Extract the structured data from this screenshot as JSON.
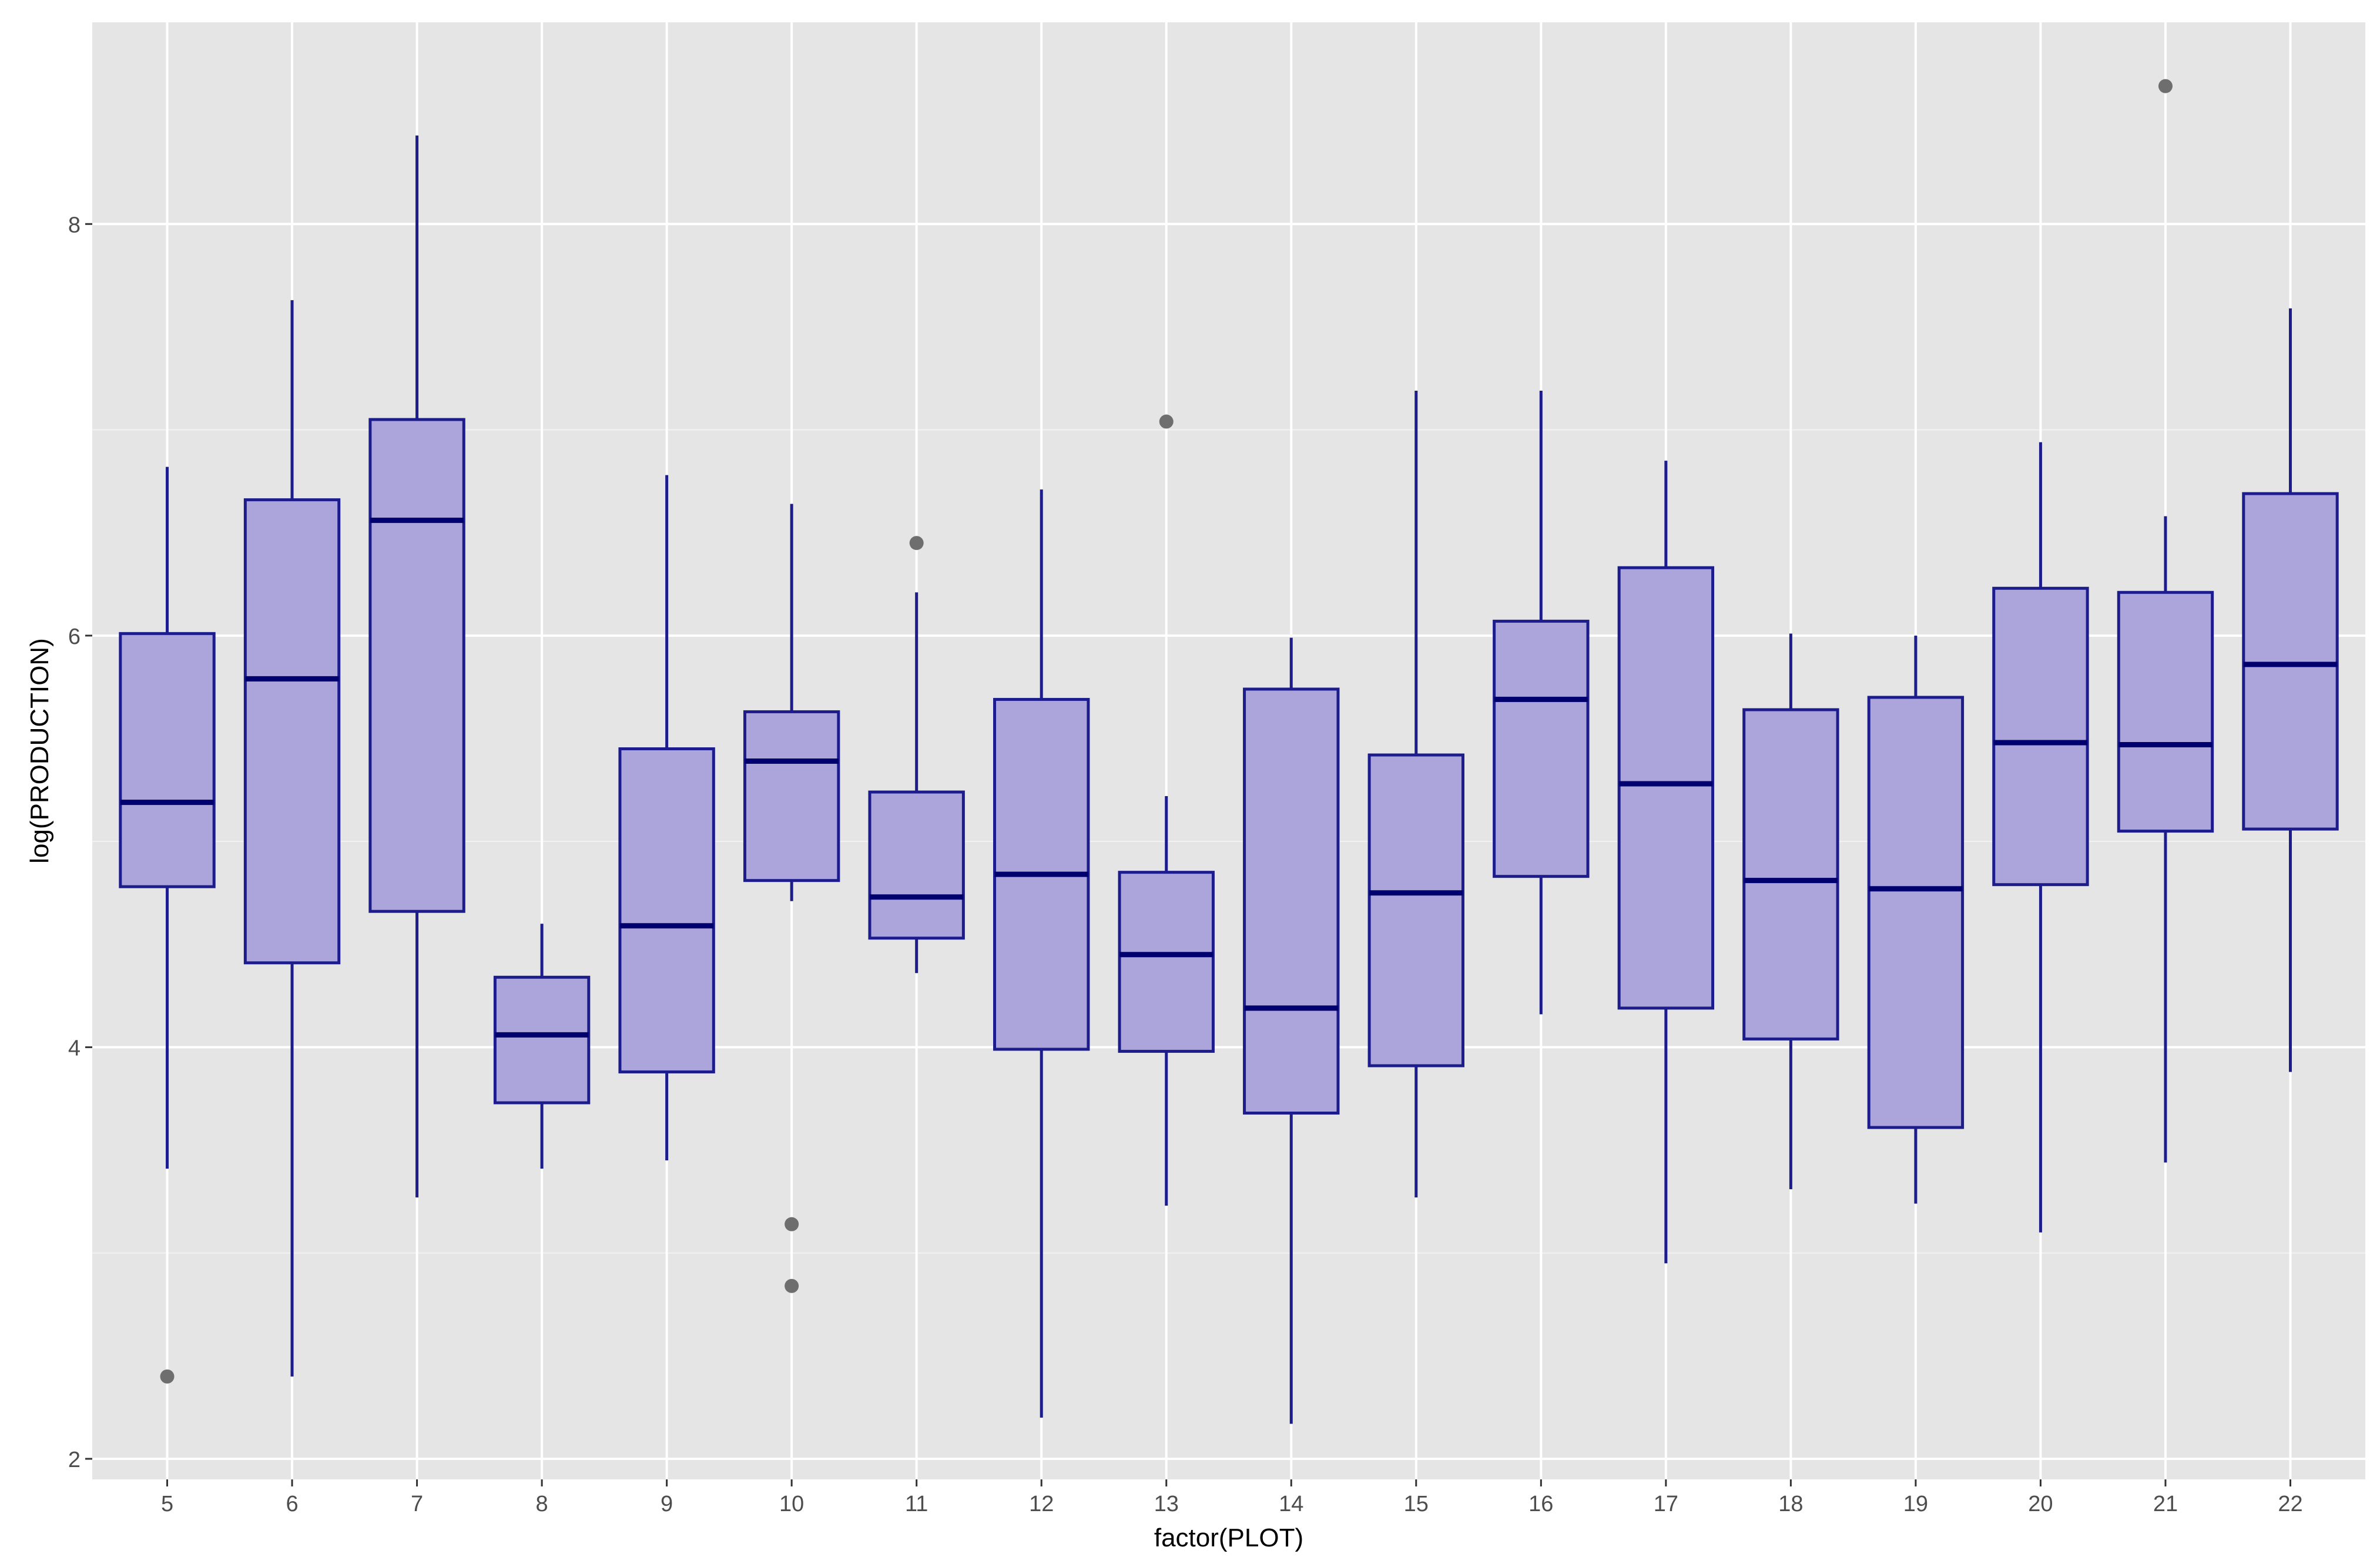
{
  "chart_data": {
    "type": "boxplot",
    "title": "",
    "xlabel": "factor(PLOT)",
    "ylabel": "log(PRODUCTION)",
    "ylim": [
      1.9,
      8.98
    ],
    "y_ticks": [
      "2",
      "4",
      "6",
      "8"
    ],
    "categories": [
      "5",
      "6",
      "7",
      "8",
      "9",
      "10",
      "11",
      "12",
      "13",
      "14",
      "15",
      "16",
      "17",
      "18",
      "19",
      "20",
      "21",
      "22"
    ],
    "boxes": [
      {
        "category": "5",
        "whisker_low": 3.41,
        "q1": 4.78,
        "median": 5.19,
        "q3": 6.01,
        "whisker_high": 6.82,
        "outliers": [
          2.4
        ]
      },
      {
        "category": "6",
        "whisker_low": 2.4,
        "q1": 4.41,
        "median": 5.79,
        "q3": 6.66,
        "whisker_high": 7.63,
        "outliers": []
      },
      {
        "category": "7",
        "whisker_low": 3.27,
        "q1": 4.66,
        "median": 6.56,
        "q3": 7.05,
        "whisker_high": 8.43,
        "outliers": []
      },
      {
        "category": "8",
        "whisker_low": 3.41,
        "q1": 3.73,
        "median": 4.06,
        "q3": 4.34,
        "whisker_high": 4.6,
        "outliers": []
      },
      {
        "category": "9",
        "whisker_low": 3.45,
        "q1": 3.88,
        "median": 4.59,
        "q3": 5.45,
        "whisker_high": 6.78,
        "outliers": []
      },
      {
        "category": "10",
        "whisker_low": 4.71,
        "q1": 4.81,
        "median": 5.39,
        "q3": 5.63,
        "whisker_high": 6.64,
        "outliers": [
          3.14,
          2.84
        ]
      },
      {
        "category": "11",
        "whisker_low": 4.36,
        "q1": 4.53,
        "median": 4.73,
        "q3": 5.24,
        "whisker_high": 6.21,
        "outliers": [
          6.45
        ]
      },
      {
        "category": "12",
        "whisker_low": 2.2,
        "q1": 3.99,
        "median": 4.84,
        "q3": 5.69,
        "whisker_high": 6.71,
        "outliers": []
      },
      {
        "category": "13",
        "whisker_low": 3.23,
        "q1": 3.98,
        "median": 4.45,
        "q3": 4.85,
        "whisker_high": 5.22,
        "outliers": [
          7.04
        ]
      },
      {
        "category": "14",
        "whisker_low": 2.17,
        "q1": 3.68,
        "median": 4.19,
        "q3": 5.74,
        "whisker_high": 5.99,
        "outliers": []
      },
      {
        "category": "15",
        "whisker_low": 3.27,
        "q1": 3.91,
        "median": 4.75,
        "q3": 5.42,
        "whisker_high": 7.19,
        "outliers": []
      },
      {
        "category": "16",
        "whisker_low": 4.16,
        "q1": 4.83,
        "median": 5.69,
        "q3": 6.07,
        "whisker_high": 7.19,
        "outliers": []
      },
      {
        "category": "17",
        "whisker_low": 2.95,
        "q1": 4.19,
        "median": 5.28,
        "q3": 6.33,
        "whisker_high": 6.85,
        "outliers": []
      },
      {
        "category": "18",
        "whisker_low": 3.31,
        "q1": 4.04,
        "median": 4.81,
        "q3": 5.64,
        "whisker_high": 6.01,
        "outliers": []
      },
      {
        "category": "19",
        "whisker_low": 3.24,
        "q1": 3.61,
        "median": 4.77,
        "q3": 5.7,
        "whisker_high": 6.0,
        "outliers": []
      },
      {
        "category": "20",
        "whisker_low": 3.1,
        "q1": 4.79,
        "median": 5.48,
        "q3": 6.23,
        "whisker_high": 6.94,
        "outliers": []
      },
      {
        "category": "21",
        "whisker_low": 3.44,
        "q1": 5.05,
        "median": 5.47,
        "q3": 6.21,
        "whisker_high": 6.58,
        "outliers": [
          8.67
        ]
      },
      {
        "category": "22",
        "whisker_low": 3.88,
        "q1": 5.06,
        "median": 5.86,
        "q3": 6.69,
        "whisker_high": 7.59,
        "outliers": []
      }
    ],
    "grid": true,
    "legend": "none",
    "colors": {
      "panel_background": "#e5e5e5",
      "grid_major": "#ffffff",
      "grid_minor": "#f2f2f2",
      "box_fill": "#aca5dc",
      "box_stroke": "#1c1c8c",
      "median_stroke": "#00006e",
      "outlier": "#6e6e6e",
      "axis_text": "#4d4d4d",
      "axis_title": "#000000"
    }
  }
}
